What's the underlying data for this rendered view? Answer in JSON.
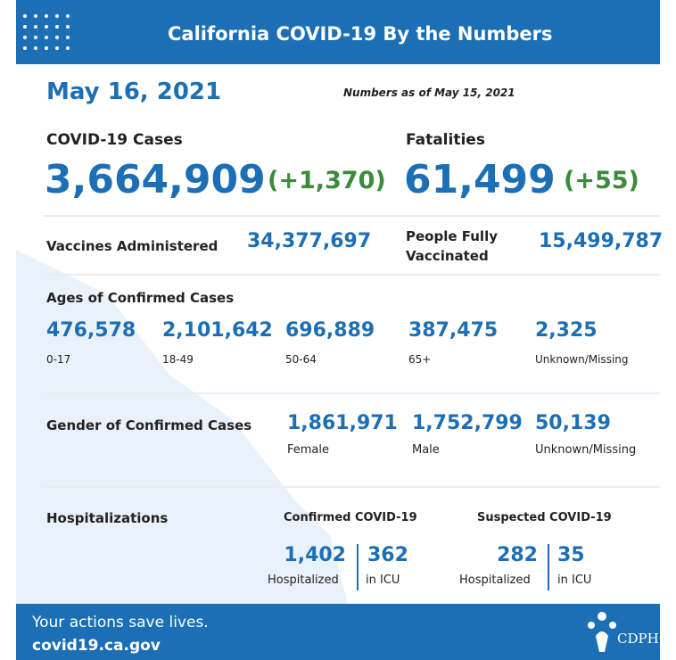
{
  "header": {
    "title": "California COVID-19 By the Numbers"
  },
  "date": "May 16, 2021",
  "as_of": "Numbers as of May 15, 2021",
  "cases": {
    "label": "COVID-19 Cases",
    "value": "3,664,909",
    "change": "(+1,370)"
  },
  "fatalities": {
    "label": "Fatalities",
    "value": "61,499",
    "change": "(+55)"
  },
  "vaccines": {
    "label": "Vaccines Administered",
    "value": "34,377,697"
  },
  "fully_vaccinated": {
    "label": [
      "People Fully",
      "Vaccinated"
    ],
    "value": "15,499,787"
  },
  "ages": {
    "title": "Ages of Confirmed Cases",
    "groups": [
      {
        "value": "476,578",
        "label": "0-17"
      },
      {
        "value": "2,101,642",
        "label": "18-49"
      },
      {
        "value": "696,889",
        "label": "50-64"
      },
      {
        "value": "387,475",
        "label": "65+"
      },
      {
        "value": "2,325",
        "label": "Unknown/Missing"
      }
    ]
  },
  "gender": {
    "title": "Gender of Confirmed Cases",
    "groups": [
      {
        "value": "1,861,971",
        "label": "Female"
      },
      {
        "value": "1,752,799",
        "label": "Male"
      },
      {
        "value": "50,139",
        "label": "Unknown/Missing"
      }
    ]
  },
  "hospitalizations": {
    "title": "Hospitalizations",
    "confirmed": {
      "title": "Confirmed COVID-19",
      "hospitalized": {
        "value": "1,402",
        "label": "Hospitalized"
      },
      "icu": {
        "value": "362",
        "label": "in ICU"
      }
    },
    "suspected": {
      "title": "Suspected COVID-19",
      "hospitalized": {
        "value": "282",
        "label": "Hospitalized"
      },
      "icu": {
        "value": "35",
        "label": "in ICU"
      }
    }
  },
  "footer": {
    "tagline": "Your actions save lives.",
    "url": "covid19.ca.gov",
    "logo": "CDPH"
  }
}
